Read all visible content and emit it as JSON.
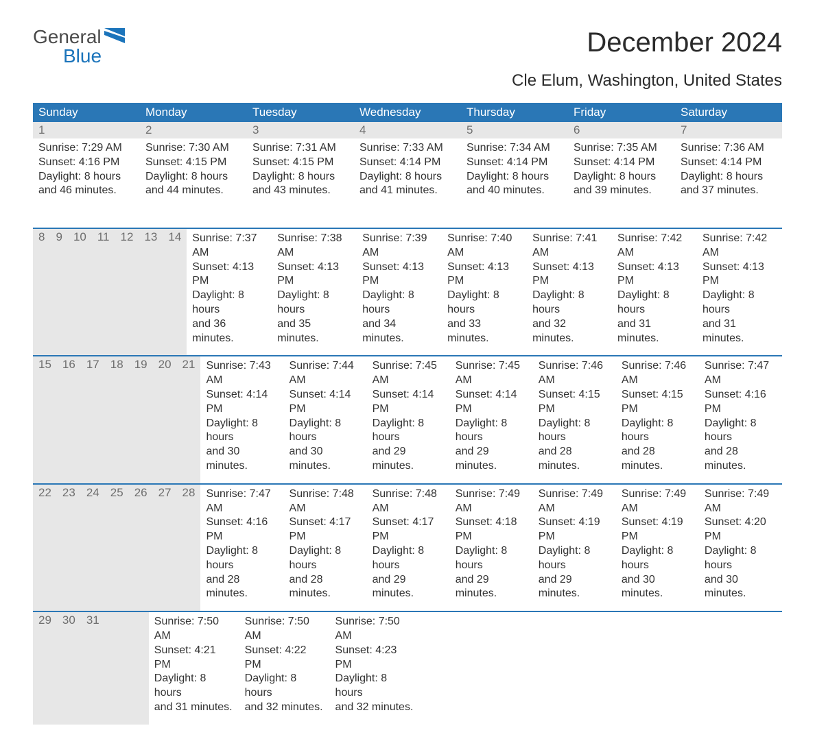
{
  "logo": {
    "word1": "General",
    "word2": "Blue",
    "flag_color": "#1b74bb"
  },
  "title": "December 2024",
  "location": "Cle Elum, Washington, United States",
  "header_bg": "#2a77b6",
  "header_text_color": "#ffffff",
  "daynum_bg": "#e7e7e7",
  "week_border_color": "#2a77b6",
  "weekdays": [
    "Sunday",
    "Monday",
    "Tuesday",
    "Wednesday",
    "Thursday",
    "Friday",
    "Saturday"
  ],
  "weeks": [
    {
      "nums": [
        "1",
        "2",
        "3",
        "4",
        "5",
        "6",
        "7"
      ],
      "days": [
        {
          "sunrise": "Sunrise: 7:29 AM",
          "sunset": "Sunset: 4:16 PM",
          "d1": "Daylight: 8 hours",
          "d2": "and 46 minutes."
        },
        {
          "sunrise": "Sunrise: 7:30 AM",
          "sunset": "Sunset: 4:15 PM",
          "d1": "Daylight: 8 hours",
          "d2": "and 44 minutes."
        },
        {
          "sunrise": "Sunrise: 7:31 AM",
          "sunset": "Sunset: 4:15 PM",
          "d1": "Daylight: 8 hours",
          "d2": "and 43 minutes."
        },
        {
          "sunrise": "Sunrise: 7:33 AM",
          "sunset": "Sunset: 4:14 PM",
          "d1": "Daylight: 8 hours",
          "d2": "and 41 minutes."
        },
        {
          "sunrise": "Sunrise: 7:34 AM",
          "sunset": "Sunset: 4:14 PM",
          "d1": "Daylight: 8 hours",
          "d2": "and 40 minutes."
        },
        {
          "sunrise": "Sunrise: 7:35 AM",
          "sunset": "Sunset: 4:14 PM",
          "d1": "Daylight: 8 hours",
          "d2": "and 39 minutes."
        },
        {
          "sunrise": "Sunrise: 7:36 AM",
          "sunset": "Sunset: 4:14 PM",
          "d1": "Daylight: 8 hours",
          "d2": "and 37 minutes."
        }
      ]
    },
    {
      "nums": [
        "8",
        "9",
        "10",
        "11",
        "12",
        "13",
        "14"
      ],
      "days": [
        {
          "sunrise": "Sunrise: 7:37 AM",
          "sunset": "Sunset: 4:13 PM",
          "d1": "Daylight: 8 hours",
          "d2": "and 36 minutes."
        },
        {
          "sunrise": "Sunrise: 7:38 AM",
          "sunset": "Sunset: 4:13 PM",
          "d1": "Daylight: 8 hours",
          "d2": "and 35 minutes."
        },
        {
          "sunrise": "Sunrise: 7:39 AM",
          "sunset": "Sunset: 4:13 PM",
          "d1": "Daylight: 8 hours",
          "d2": "and 34 minutes."
        },
        {
          "sunrise": "Sunrise: 7:40 AM",
          "sunset": "Sunset: 4:13 PM",
          "d1": "Daylight: 8 hours",
          "d2": "and 33 minutes."
        },
        {
          "sunrise": "Sunrise: 7:41 AM",
          "sunset": "Sunset: 4:13 PM",
          "d1": "Daylight: 8 hours",
          "d2": "and 32 minutes."
        },
        {
          "sunrise": "Sunrise: 7:42 AM",
          "sunset": "Sunset: 4:13 PM",
          "d1": "Daylight: 8 hours",
          "d2": "and 31 minutes."
        },
        {
          "sunrise": "Sunrise: 7:42 AM",
          "sunset": "Sunset: 4:13 PM",
          "d1": "Daylight: 8 hours",
          "d2": "and 31 minutes."
        }
      ]
    },
    {
      "nums": [
        "15",
        "16",
        "17",
        "18",
        "19",
        "20",
        "21"
      ],
      "days": [
        {
          "sunrise": "Sunrise: 7:43 AM",
          "sunset": "Sunset: 4:14 PM",
          "d1": "Daylight: 8 hours",
          "d2": "and 30 minutes."
        },
        {
          "sunrise": "Sunrise: 7:44 AM",
          "sunset": "Sunset: 4:14 PM",
          "d1": "Daylight: 8 hours",
          "d2": "and 30 minutes."
        },
        {
          "sunrise": "Sunrise: 7:45 AM",
          "sunset": "Sunset: 4:14 PM",
          "d1": "Daylight: 8 hours",
          "d2": "and 29 minutes."
        },
        {
          "sunrise": "Sunrise: 7:45 AM",
          "sunset": "Sunset: 4:14 PM",
          "d1": "Daylight: 8 hours",
          "d2": "and 29 minutes."
        },
        {
          "sunrise": "Sunrise: 7:46 AM",
          "sunset": "Sunset: 4:15 PM",
          "d1": "Daylight: 8 hours",
          "d2": "and 28 minutes."
        },
        {
          "sunrise": "Sunrise: 7:46 AM",
          "sunset": "Sunset: 4:15 PM",
          "d1": "Daylight: 8 hours",
          "d2": "and 28 minutes."
        },
        {
          "sunrise": "Sunrise: 7:47 AM",
          "sunset": "Sunset: 4:16 PM",
          "d1": "Daylight: 8 hours",
          "d2": "and 28 minutes."
        }
      ]
    },
    {
      "nums": [
        "22",
        "23",
        "24",
        "25",
        "26",
        "27",
        "28"
      ],
      "days": [
        {
          "sunrise": "Sunrise: 7:47 AM",
          "sunset": "Sunset: 4:16 PM",
          "d1": "Daylight: 8 hours",
          "d2": "and 28 minutes."
        },
        {
          "sunrise": "Sunrise: 7:48 AM",
          "sunset": "Sunset: 4:17 PM",
          "d1": "Daylight: 8 hours",
          "d2": "and 28 minutes."
        },
        {
          "sunrise": "Sunrise: 7:48 AM",
          "sunset": "Sunset: 4:17 PM",
          "d1": "Daylight: 8 hours",
          "d2": "and 29 minutes."
        },
        {
          "sunrise": "Sunrise: 7:49 AM",
          "sunset": "Sunset: 4:18 PM",
          "d1": "Daylight: 8 hours",
          "d2": "and 29 minutes."
        },
        {
          "sunrise": "Sunrise: 7:49 AM",
          "sunset": "Sunset: 4:19 PM",
          "d1": "Daylight: 8 hours",
          "d2": "and 29 minutes."
        },
        {
          "sunrise": "Sunrise: 7:49 AM",
          "sunset": "Sunset: 4:19 PM",
          "d1": "Daylight: 8 hours",
          "d2": "and 30 minutes."
        },
        {
          "sunrise": "Sunrise: 7:49 AM",
          "sunset": "Sunset: 4:20 PM",
          "d1": "Daylight: 8 hours",
          "d2": "and 30 minutes."
        }
      ]
    },
    {
      "nums": [
        "29",
        "30",
        "31",
        "",
        "",
        "",
        ""
      ],
      "days": [
        {
          "sunrise": "Sunrise: 7:50 AM",
          "sunset": "Sunset: 4:21 PM",
          "d1": "Daylight: 8 hours",
          "d2": "and 31 minutes."
        },
        {
          "sunrise": "Sunrise: 7:50 AM",
          "sunset": "Sunset: 4:22 PM",
          "d1": "Daylight: 8 hours",
          "d2": "and 32 minutes."
        },
        {
          "sunrise": "Sunrise: 7:50 AM",
          "sunset": "Sunset: 4:23 PM",
          "d1": "Daylight: 8 hours",
          "d2": "and 32 minutes."
        },
        {
          "sunrise": "",
          "sunset": "",
          "d1": "",
          "d2": ""
        },
        {
          "sunrise": "",
          "sunset": "",
          "d1": "",
          "d2": ""
        },
        {
          "sunrise": "",
          "sunset": "",
          "d1": "",
          "d2": ""
        },
        {
          "sunrise": "",
          "sunset": "",
          "d1": "",
          "d2": ""
        }
      ]
    }
  ]
}
